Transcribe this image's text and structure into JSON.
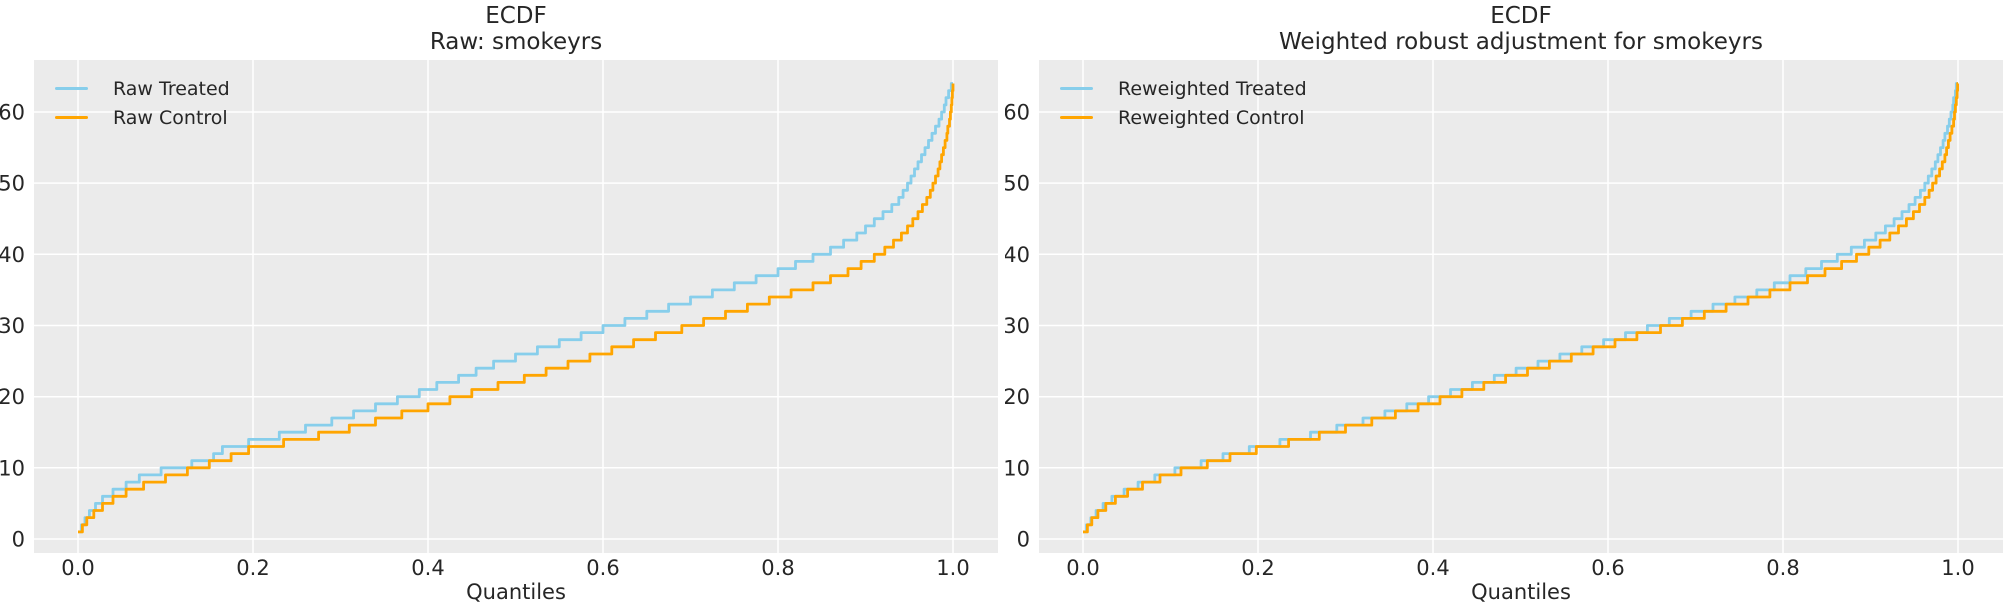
{
  "style": {
    "figure_bg": "#ffffff",
    "plot_bg": "#ebebeb",
    "grid_color": "#ffffff",
    "text_color": "#262626",
    "treated_color": "#87ceeb",
    "control_color": "#ffa500"
  },
  "chart_data": [
    {
      "type": "line",
      "subtype": "quantile-step-ecdf",
      "title_line1": "ECDF",
      "title_line2": "Raw: smokeyrs",
      "xlabel": "Quantiles",
      "ylabel": "",
      "xlim": [
        -0.05,
        1.05
      ],
      "ylim": [
        -2,
        67.5
      ],
      "grid": true,
      "legend_position": "upper-left",
      "xticks": [
        0.0,
        0.2,
        0.4,
        0.6,
        0.8,
        1.0
      ],
      "xtick_labels": [
        "0.0",
        "0.2",
        "0.4",
        "0.6",
        "0.8",
        "1.0"
      ],
      "yticks": [
        0,
        10,
        20,
        30,
        40,
        50,
        60
      ],
      "ytick_labels": [
        "0",
        "10",
        "20",
        "30",
        "40",
        "50",
        "60"
      ],
      "series": [
        {
          "name": "Raw Treated",
          "color": "#87ceeb",
          "points": [
            [
              0,
              1
            ],
            [
              0.004,
              2
            ],
            [
              0.008,
              3
            ],
            [
              0.013,
              4
            ],
            [
              0.02,
              5
            ],
            [
              0.028,
              6
            ],
            [
              0.04,
              7
            ],
            [
              0.055,
              8
            ],
            [
              0.07,
              9
            ],
            [
              0.095,
              10
            ],
            [
              0.13,
              11
            ],
            [
              0.155,
              12
            ],
            [
              0.165,
              13
            ],
            [
              0.195,
              14
            ],
            [
              0.23,
              15
            ],
            [
              0.26,
              16
            ],
            [
              0.29,
              17
            ],
            [
              0.315,
              18
            ],
            [
              0.34,
              19
            ],
            [
              0.365,
              20
            ],
            [
              0.39,
              21
            ],
            [
              0.41,
              22
            ],
            [
              0.435,
              23
            ],
            [
              0.455,
              24
            ],
            [
              0.475,
              25
            ],
            [
              0.5,
              26
            ],
            [
              0.525,
              27
            ],
            [
              0.55,
              28
            ],
            [
              0.575,
              29
            ],
            [
              0.6,
              30
            ],
            [
              0.625,
              31
            ],
            [
              0.65,
              32
            ],
            [
              0.675,
              33
            ],
            [
              0.7,
              34
            ],
            [
              0.725,
              35
            ],
            [
              0.75,
              36
            ],
            [
              0.775,
              37
            ],
            [
              0.8,
              38
            ],
            [
              0.82,
              39
            ],
            [
              0.84,
              40
            ],
            [
              0.86,
              41
            ],
            [
              0.875,
              42
            ],
            [
              0.89,
              43
            ],
            [
              0.9,
              44
            ],
            [
              0.91,
              45
            ],
            [
              0.92,
              46
            ],
            [
              0.93,
              47
            ],
            [
              0.938,
              48
            ],
            [
              0.943,
              49
            ],
            [
              0.948,
              50
            ],
            [
              0.952,
              51
            ],
            [
              0.956,
              52
            ],
            [
              0.96,
              53
            ],
            [
              0.964,
              54
            ],
            [
              0.968,
              55
            ],
            [
              0.972,
              56
            ],
            [
              0.976,
              57
            ],
            [
              0.98,
              58
            ],
            [
              0.984,
              59
            ],
            [
              0.987,
              60
            ],
            [
              0.99,
              61
            ],
            [
              0.992,
              62
            ],
            [
              0.995,
              63
            ],
            [
              0.998,
              64
            ],
            [
              1,
              64
            ]
          ]
        },
        {
          "name": "Raw Control",
          "color": "#ffa500",
          "points": [
            [
              0,
              1
            ],
            [
              0.005,
              2
            ],
            [
              0.01,
              3
            ],
            [
              0.018,
              4
            ],
            [
              0.028,
              5
            ],
            [
              0.04,
              6
            ],
            [
              0.055,
              7
            ],
            [
              0.075,
              8
            ],
            [
              0.1,
              9
            ],
            [
              0.125,
              10
            ],
            [
              0.15,
              11
            ],
            [
              0.175,
              12
            ],
            [
              0.195,
              13
            ],
            [
              0.235,
              14
            ],
            [
              0.275,
              15
            ],
            [
              0.31,
              16
            ],
            [
              0.34,
              17
            ],
            [
              0.37,
              18
            ],
            [
              0.4,
              19
            ],
            [
              0.425,
              20
            ],
            [
              0.45,
              21
            ],
            [
              0.48,
              22
            ],
            [
              0.51,
              23
            ],
            [
              0.535,
              24
            ],
            [
              0.56,
              25
            ],
            [
              0.585,
              26
            ],
            [
              0.61,
              27
            ],
            [
              0.635,
              28
            ],
            [
              0.66,
              29
            ],
            [
              0.69,
              30
            ],
            [
              0.715,
              31
            ],
            [
              0.74,
              32
            ],
            [
              0.765,
              33
            ],
            [
              0.79,
              34
            ],
            [
              0.815,
              35
            ],
            [
              0.84,
              36
            ],
            [
              0.86,
              37
            ],
            [
              0.88,
              38
            ],
            [
              0.895,
              39
            ],
            [
              0.91,
              40
            ],
            [
              0.922,
              41
            ],
            [
              0.932,
              42
            ],
            [
              0.941,
              43
            ],
            [
              0.948,
              44
            ],
            [
              0.954,
              45
            ],
            [
              0.96,
              46
            ],
            [
              0.965,
              47
            ],
            [
              0.97,
              48
            ],
            [
              0.974,
              49
            ],
            [
              0.977,
              50
            ],
            [
              0.98,
              51
            ],
            [
              0.983,
              52
            ],
            [
              0.985,
              53
            ],
            [
              0.987,
              54
            ],
            [
              0.989,
              55
            ],
            [
              0.991,
              56
            ],
            [
              0.993,
              57
            ],
            [
              0.994,
              58
            ],
            [
              0.996,
              59
            ],
            [
              0.997,
              60
            ],
            [
              0.998,
              61
            ],
            [
              0.9987,
              62
            ],
            [
              0.9993,
              63
            ],
            [
              1,
              64
            ]
          ]
        }
      ]
    },
    {
      "type": "line",
      "subtype": "quantile-step-ecdf",
      "title_line1": "ECDF",
      "title_line2": "Weighted robust adjustment for smokeyrs",
      "xlabel": "Quantiles",
      "ylabel": "",
      "xlim": [
        -0.05,
        1.05
      ],
      "ylim": [
        -2,
        67.5
      ],
      "grid": true,
      "legend_position": "upper-left",
      "xticks": [
        0.0,
        0.2,
        0.4,
        0.6,
        0.8,
        1.0
      ],
      "xtick_labels": [
        "0.0",
        "0.2",
        "0.4",
        "0.6",
        "0.8",
        "1.0"
      ],
      "yticks": [
        0,
        10,
        20,
        30,
        40,
        50,
        60
      ],
      "ytick_labels": [
        "0",
        "10",
        "20",
        "30",
        "40",
        "50",
        "60"
      ],
      "series": [
        {
          "name": "Reweighted Treated",
          "color": "#87ceeb",
          "points": [
            [
              0,
              1
            ],
            [
              0.004,
              2
            ],
            [
              0.009,
              3
            ],
            [
              0.015,
              4
            ],
            [
              0.023,
              5
            ],
            [
              0.033,
              6
            ],
            [
              0.047,
              7
            ],
            [
              0.063,
              8
            ],
            [
              0.082,
              9
            ],
            [
              0.105,
              10
            ],
            [
              0.135,
              11
            ],
            [
              0.16,
              12
            ],
            [
              0.19,
              13
            ],
            [
              0.225,
              14
            ],
            [
              0.26,
              15
            ],
            [
              0.29,
              16
            ],
            [
              0.32,
              17
            ],
            [
              0.345,
              18
            ],
            [
              0.37,
              19
            ],
            [
              0.395,
              20
            ],
            [
              0.42,
              21
            ],
            [
              0.445,
              22
            ],
            [
              0.47,
              23
            ],
            [
              0.495,
              24
            ],
            [
              0.52,
              25
            ],
            [
              0.545,
              26
            ],
            [
              0.57,
              27
            ],
            [
              0.595,
              28
            ],
            [
              0.62,
              29
            ],
            [
              0.645,
              30
            ],
            [
              0.67,
              31
            ],
            [
              0.695,
              32
            ],
            [
              0.72,
              33
            ],
            [
              0.745,
              34
            ],
            [
              0.77,
              35
            ],
            [
              0.79,
              36
            ],
            [
              0.808,
              37
            ],
            [
              0.826,
              38
            ],
            [
              0.844,
              39
            ],
            [
              0.862,
              40
            ],
            [
              0.878,
              41
            ],
            [
              0.893,
              42
            ],
            [
              0.906,
              43
            ],
            [
              0.917,
              44
            ],
            [
              0.927,
              45
            ],
            [
              0.936,
              46
            ],
            [
              0.944,
              47
            ],
            [
              0.951,
              48
            ],
            [
              0.957,
              49
            ],
            [
              0.962,
              50
            ],
            [
              0.966,
              51
            ],
            [
              0.97,
              52
            ],
            [
              0.974,
              53
            ],
            [
              0.977,
              54
            ],
            [
              0.98,
              55
            ],
            [
              0.983,
              56
            ],
            [
              0.985,
              57
            ],
            [
              0.988,
              58
            ],
            [
              0.99,
              59
            ],
            [
              0.992,
              60
            ],
            [
              0.994,
              61
            ],
            [
              0.995,
              62
            ],
            [
              0.997,
              63
            ],
            [
              0.998,
              64
            ],
            [
              1,
              64
            ]
          ]
        },
        {
          "name": "Reweighted Control",
          "color": "#ffa500",
          "points": [
            [
              0,
              1
            ],
            [
              0.005,
              2
            ],
            [
              0.01,
              3
            ],
            [
              0.017,
              4
            ],
            [
              0.026,
              5
            ],
            [
              0.037,
              6
            ],
            [
              0.051,
              7
            ],
            [
              0.068,
              8
            ],
            [
              0.088,
              9
            ],
            [
              0.112,
              10
            ],
            [
              0.142,
              11
            ],
            [
              0.168,
              12
            ],
            [
              0.198,
              13
            ],
            [
              0.235,
              14
            ],
            [
              0.27,
              15
            ],
            [
              0.3,
              16
            ],
            [
              0.33,
              17
            ],
            [
              0.357,
              18
            ],
            [
              0.383,
              19
            ],
            [
              0.408,
              20
            ],
            [
              0.433,
              21
            ],
            [
              0.458,
              22
            ],
            [
              0.483,
              23
            ],
            [
              0.508,
              24
            ],
            [
              0.533,
              25
            ],
            [
              0.558,
              26
            ],
            [
              0.583,
              27
            ],
            [
              0.608,
              28
            ],
            [
              0.633,
              29
            ],
            [
              0.66,
              30
            ],
            [
              0.685,
              31
            ],
            [
              0.71,
              32
            ],
            [
              0.735,
              33
            ],
            [
              0.76,
              34
            ],
            [
              0.785,
              35
            ],
            [
              0.808,
              36
            ],
            [
              0.828,
              37
            ],
            [
              0.848,
              38
            ],
            [
              0.867,
              39
            ],
            [
              0.884,
              40
            ],
            [
              0.898,
              41
            ],
            [
              0.911,
              42
            ],
            [
              0.922,
              43
            ],
            [
              0.932,
              44
            ],
            [
              0.941,
              45
            ],
            [
              0.949,
              46
            ],
            [
              0.956,
              47
            ],
            [
              0.962,
              48
            ],
            [
              0.967,
              49
            ],
            [
              0.971,
              50
            ],
            [
              0.975,
              51
            ],
            [
              0.979,
              52
            ],
            [
              0.982,
              53
            ],
            [
              0.985,
              54
            ],
            [
              0.987,
              55
            ],
            [
              0.989,
              56
            ],
            [
              0.991,
              57
            ],
            [
              0.993,
              58
            ],
            [
              0.995,
              59
            ],
            [
              0.996,
              60
            ],
            [
              0.997,
              61
            ],
            [
              0.998,
              62
            ],
            [
              0.999,
              63
            ],
            [
              0.9995,
              64
            ],
            [
              1,
              64
            ]
          ]
        }
      ]
    }
  ]
}
